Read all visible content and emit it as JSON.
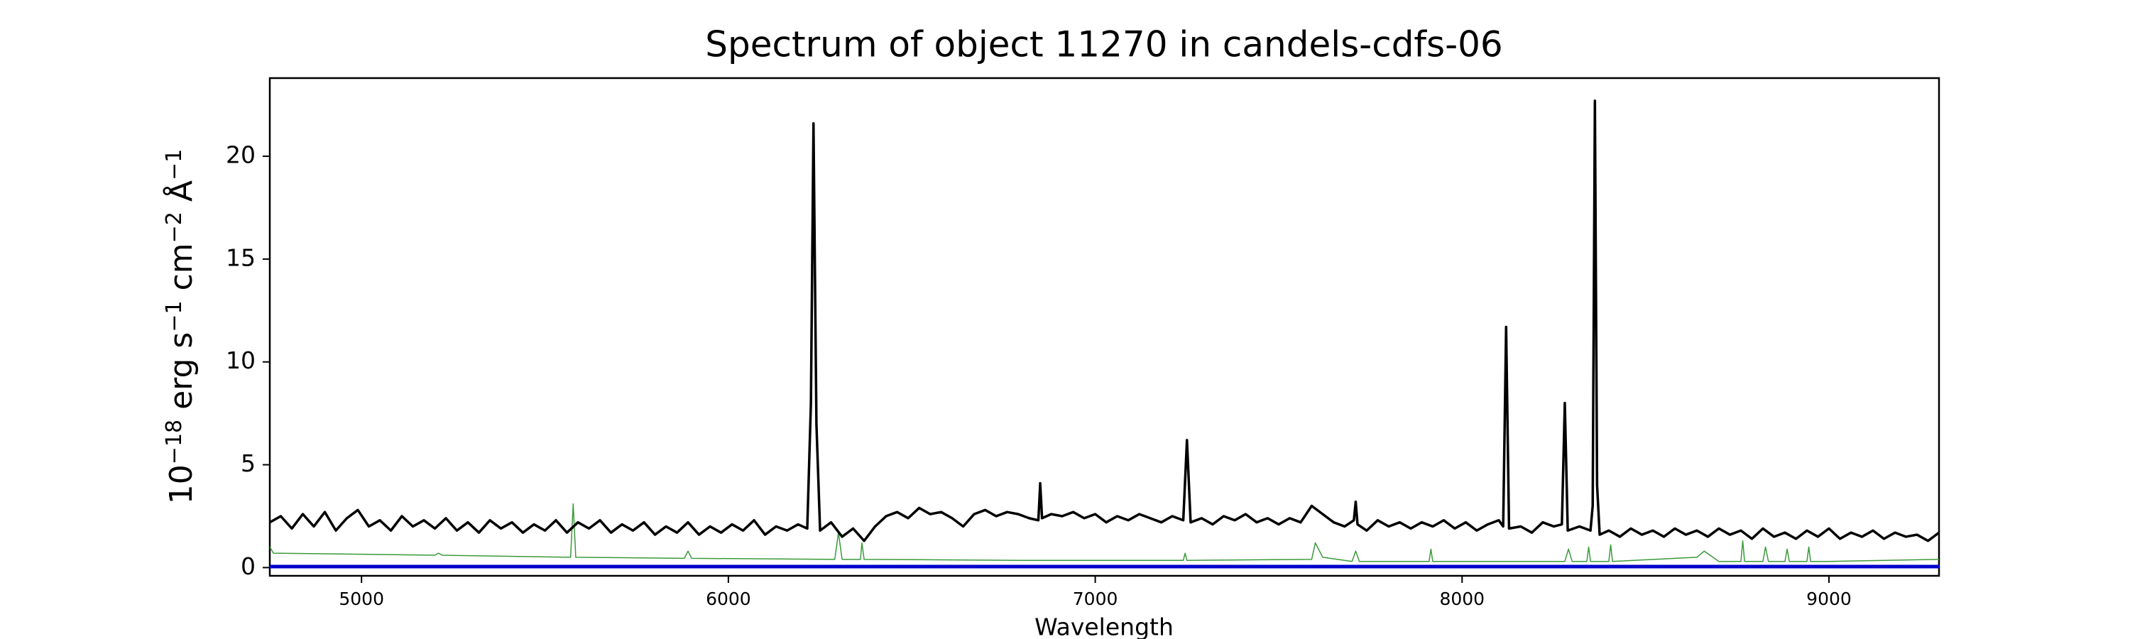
{
  "chart_data": {
    "type": "line",
    "title": "Spectrum of object 11270 in candels-cdfs-06",
    "xlabel": "Wavelength",
    "ylabel_parts": [
      "10",
      "−18",
      " erg s",
      "−1",
      " cm",
      "−2",
      " Å",
      "−1"
    ],
    "xlim": [
      4750,
      9300
    ],
    "ylim": [
      -0.4,
      23.8
    ],
    "xticks": [
      5000,
      6000,
      7000,
      8000,
      9000
    ],
    "yticks": [
      0,
      5,
      10,
      15,
      20
    ],
    "series": [
      {
        "color": "#000000",
        "linewidth": 3.5,
        "x": [
          4750,
          4780,
          4810,
          4840,
          4870,
          4900,
          4930,
          4960,
          4990,
          5020,
          5050,
          5080,
          5110,
          5140,
          5170,
          5200,
          5230,
          5260,
          5290,
          5320,
          5350,
          5380,
          5410,
          5440,
          5470,
          5500,
          5530,
          5560,
          5590,
          5620,
          5650,
          5680,
          5710,
          5740,
          5770,
          5800,
          5830,
          5860,
          5890,
          5920,
          5950,
          5980,
          6010,
          6040,
          6070,
          6100,
          6130,
          6160,
          6190,
          6215,
          6225,
          6232,
          6240,
          6250,
          6280,
          6310,
          6340,
          6370,
          6400,
          6430,
          6460,
          6490,
          6520,
          6550,
          6580,
          6610,
          6640,
          6670,
          6700,
          6730,
          6760,
          6790,
          6820,
          6845,
          6850,
          6855,
          6880,
          6910,
          6940,
          6970,
          7000,
          7030,
          7060,
          7090,
          7120,
          7150,
          7180,
          7210,
          7240,
          7250,
          7260,
          7290,
          7320,
          7350,
          7380,
          7410,
          7440,
          7470,
          7500,
          7530,
          7560,
          7590,
          7620,
          7650,
          7680,
          7705,
          7710,
          7715,
          7740,
          7770,
          7800,
          7830,
          7860,
          7890,
          7920,
          7950,
          7980,
          8010,
          8040,
          8070,
          8100,
          8112,
          8120,
          8128,
          8160,
          8190,
          8220,
          8250,
          8272,
          8280,
          8288,
          8320,
          8350,
          8356,
          8362,
          8368,
          8375,
          8400,
          8430,
          8460,
          8490,
          8520,
          8550,
          8580,
          8610,
          8640,
          8670,
          8700,
          8730,
          8760,
          8790,
          8820,
          8850,
          8880,
          8910,
          8940,
          8970,
          9000,
          9030,
          9060,
          9090,
          9120,
          9150,
          9180,
          9210,
          9240,
          9270,
          9300
        ],
        "values": [
          2.2,
          2.5,
          1.9,
          2.6,
          2.0,
          2.7,
          1.8,
          2.4,
          2.8,
          2.0,
          2.3,
          1.8,
          2.5,
          2.0,
          2.3,
          1.9,
          2.4,
          1.8,
          2.2,
          1.7,
          2.3,
          1.9,
          2.2,
          1.7,
          2.1,
          1.8,
          2.3,
          1.7,
          2.2,
          1.9,
          2.3,
          1.7,
          2.1,
          1.8,
          2.2,
          1.6,
          2.0,
          1.7,
          2.2,
          1.6,
          2.0,
          1.7,
          2.1,
          1.8,
          2.3,
          1.6,
          2.0,
          1.8,
          2.1,
          1.9,
          8.0,
          21.6,
          7.0,
          1.8,
          2.2,
          1.5,
          1.9,
          1.3,
          2.0,
          2.5,
          2.7,
          2.4,
          2.9,
          2.6,
          2.7,
          2.4,
          2.0,
          2.6,
          2.8,
          2.5,
          2.7,
          2.6,
          2.4,
          2.3,
          4.1,
          2.4,
          2.6,
          2.5,
          2.7,
          2.4,
          2.6,
          2.2,
          2.5,
          2.3,
          2.6,
          2.4,
          2.2,
          2.5,
          2.3,
          6.2,
          2.2,
          2.4,
          2.1,
          2.5,
          2.3,
          2.6,
          2.2,
          2.4,
          2.1,
          2.4,
          2.2,
          3.0,
          2.6,
          2.2,
          2.0,
          2.3,
          3.2,
          2.1,
          1.8,
          2.3,
          2.0,
          2.2,
          1.9,
          2.2,
          2.0,
          2.3,
          1.9,
          2.2,
          1.8,
          2.1,
          2.3,
          2.0,
          11.7,
          1.9,
          2.0,
          1.7,
          2.2,
          2.0,
          2.1,
          8.0,
          1.8,
          2.0,
          1.8,
          3.0,
          22.7,
          4.0,
          1.6,
          1.8,
          1.5,
          1.9,
          1.6,
          1.8,
          1.5,
          1.9,
          1.6,
          1.8,
          1.5,
          1.9,
          1.6,
          1.8,
          1.4,
          1.9,
          1.5,
          1.7,
          1.4,
          1.8,
          1.5,
          1.9,
          1.4,
          1.7,
          1.5,
          1.8,
          1.4,
          1.7,
          1.5,
          1.6,
          1.3,
          1.7
        ]
      },
      {
        "color": "#3a9a3a",
        "linewidth": 1.5,
        "x": [
          4750,
          4760,
          5000,
          5200,
          5210,
          5220,
          5570,
          5577,
          5584,
          5880,
          5890,
          5900,
          6290,
          6300,
          6310,
          6360,
          6364,
          6370,
          6800,
          7240,
          7245,
          7250,
          7590,
          7600,
          7620,
          7700,
          7710,
          7720,
          7910,
          7915,
          7920,
          8280,
          8290,
          8300,
          8340,
          8345,
          8350,
          8400,
          8405,
          8410,
          8640,
          8660,
          8700,
          8760,
          8765,
          8770,
          8820,
          8827,
          8835,
          8880,
          8886,
          8892,
          8940,
          8945,
          8950,
          9000,
          9300
        ],
        "values": [
          1.0,
          0.7,
          0.65,
          0.6,
          0.7,
          0.6,
          0.5,
          3.1,
          0.5,
          0.45,
          0.8,
          0.45,
          0.4,
          1.7,
          0.4,
          0.4,
          1.2,
          0.4,
          0.35,
          0.35,
          0.7,
          0.35,
          0.4,
          1.2,
          0.5,
          0.3,
          0.8,
          0.3,
          0.3,
          0.9,
          0.3,
          0.3,
          0.9,
          0.3,
          0.3,
          1.0,
          0.3,
          0.3,
          1.1,
          0.3,
          0.5,
          0.8,
          0.3,
          0.3,
          1.3,
          0.3,
          0.3,
          1.0,
          0.3,
          0.3,
          0.9,
          0.3,
          0.3,
          1.0,
          0.3,
          0.3,
          0.4
        ]
      },
      {
        "color": "#0000cc",
        "linewidth": 5,
        "x": [
          4750,
          9300
        ],
        "values": [
          0.05,
          0.05
        ]
      }
    ]
  }
}
